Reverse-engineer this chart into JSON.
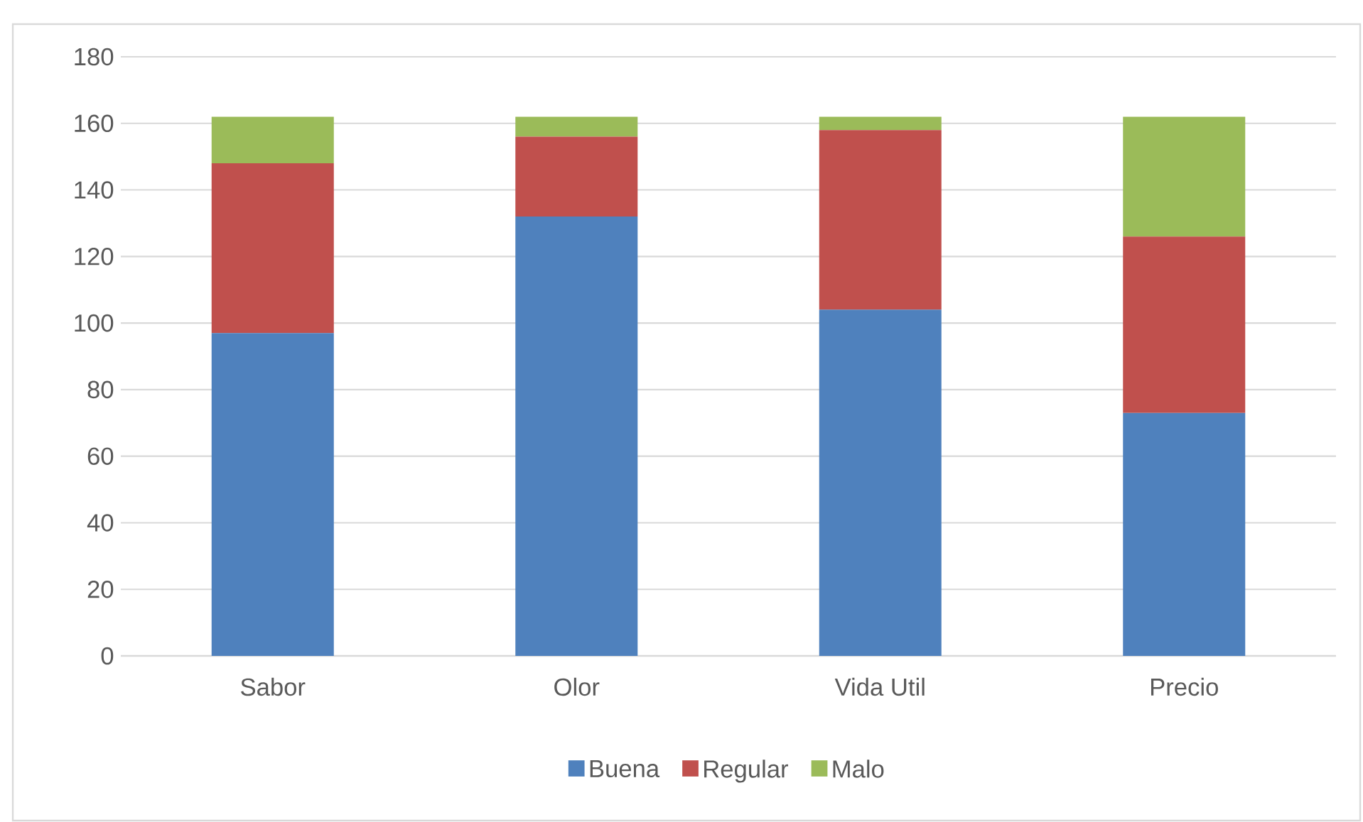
{
  "chart_data": {
    "type": "bar",
    "stacked": true,
    "categories": [
      "Sabor",
      "Olor",
      "Vida Util",
      "Precio"
    ],
    "series": [
      {
        "name": "Buena",
        "color": "#4f81bd",
        "values": [
          97,
          132,
          104,
          73
        ]
      },
      {
        "name": "Regular",
        "color": "#c0504d",
        "values": [
          51,
          24,
          54,
          53
        ]
      },
      {
        "name": "Malo",
        "color": "#9bbb59",
        "values": [
          14,
          6,
          4,
          36
        ]
      }
    ],
    "ylim": [
      0,
      180
    ],
    "yticks": [
      0,
      20,
      40,
      60,
      80,
      100,
      120,
      140,
      160,
      180
    ],
    "grid": "y",
    "legend": "bottom"
  }
}
